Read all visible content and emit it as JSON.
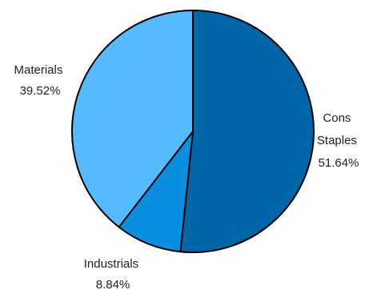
{
  "chart_data": {
    "type": "pie",
    "slices": [
      {
        "name": "Cons Staples",
        "label_lines": [
          "Cons",
          "Staples",
          "51.64%"
        ],
        "value": 51.64,
        "color": "#0066a8"
      },
      {
        "name": "Industrials",
        "label_lines": [
          "Industrials",
          "8.84%"
        ],
        "value": 8.84,
        "color": "#0a8fe0"
      },
      {
        "name": "Materials",
        "label_lines": [
          "Materials",
          "39.52%"
        ],
        "value": 39.52,
        "color": "#55bbff"
      }
    ],
    "start_angle": "12 o'clock",
    "direction": "clockwise",
    "legend": "none"
  }
}
